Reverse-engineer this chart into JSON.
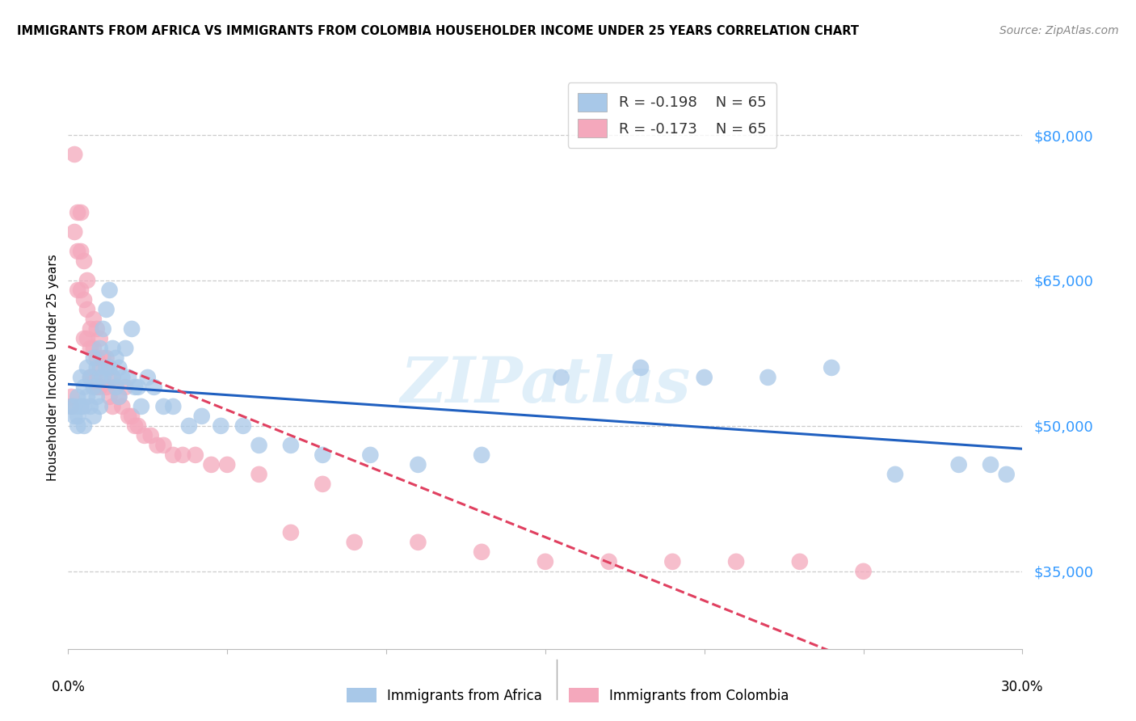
{
  "title": "IMMIGRANTS FROM AFRICA VS IMMIGRANTS FROM COLOMBIA HOUSEHOLDER INCOME UNDER 25 YEARS CORRELATION CHART",
  "source": "Source: ZipAtlas.com",
  "ylabel": "Householder Income Under 25 years",
  "ytick_values": [
    35000,
    50000,
    65000,
    80000
  ],
  "ylim": [
    27000,
    85000
  ],
  "xlim": [
    0.0,
    0.3
  ],
  "legend_africa_r": "R = -0.198",
  "legend_africa_n": "N = 65",
  "legend_colombia_r": "R = -0.173",
  "legend_colombia_n": "N = 65",
  "africa_color": "#A8C8E8",
  "colombia_color": "#F4A8BC",
  "africa_line_color": "#2060C0",
  "colombia_line_color": "#E04060",
  "watermark": "ZIPatlas",
  "africa_scatter_x": [
    0.001,
    0.002,
    0.002,
    0.003,
    0.003,
    0.003,
    0.004,
    0.004,
    0.005,
    0.005,
    0.005,
    0.006,
    0.006,
    0.007,
    0.007,
    0.008,
    0.008,
    0.008,
    0.009,
    0.009,
    0.01,
    0.01,
    0.01,
    0.011,
    0.011,
    0.012,
    0.012,
    0.013,
    0.013,
    0.014,
    0.014,
    0.015,
    0.015,
    0.016,
    0.016,
    0.017,
    0.018,
    0.019,
    0.02,
    0.021,
    0.022,
    0.023,
    0.025,
    0.027,
    0.03,
    0.033,
    0.038,
    0.042,
    0.048,
    0.055,
    0.06,
    0.07,
    0.08,
    0.095,
    0.11,
    0.13,
    0.155,
    0.18,
    0.2,
    0.22,
    0.24,
    0.26,
    0.28,
    0.29,
    0.295
  ],
  "africa_scatter_y": [
    52000,
    52000,
    51000,
    53000,
    51000,
    50000,
    55000,
    52000,
    54000,
    52000,
    50000,
    56000,
    53000,
    55000,
    52000,
    57000,
    54000,
    51000,
    56000,
    53000,
    58000,
    55000,
    52000,
    60000,
    55000,
    62000,
    56000,
    64000,
    56000,
    58000,
    55000,
    57000,
    54000,
    56000,
    53000,
    55000,
    58000,
    55000,
    60000,
    54000,
    54000,
    52000,
    55000,
    54000,
    52000,
    52000,
    50000,
    51000,
    50000,
    50000,
    48000,
    48000,
    47000,
    47000,
    46000,
    47000,
    55000,
    56000,
    55000,
    55000,
    56000,
    45000,
    46000,
    46000,
    45000
  ],
  "colombia_scatter_x": [
    0.001,
    0.001,
    0.002,
    0.002,
    0.003,
    0.003,
    0.003,
    0.004,
    0.004,
    0.004,
    0.005,
    0.005,
    0.005,
    0.006,
    0.006,
    0.006,
    0.007,
    0.007,
    0.007,
    0.008,
    0.008,
    0.008,
    0.009,
    0.009,
    0.009,
    0.01,
    0.01,
    0.01,
    0.011,
    0.011,
    0.012,
    0.012,
    0.013,
    0.013,
    0.014,
    0.014,
    0.015,
    0.016,
    0.017,
    0.018,
    0.019,
    0.02,
    0.021,
    0.022,
    0.024,
    0.026,
    0.028,
    0.03,
    0.033,
    0.036,
    0.04,
    0.045,
    0.05,
    0.06,
    0.07,
    0.08,
    0.09,
    0.11,
    0.13,
    0.15,
    0.17,
    0.19,
    0.21,
    0.23,
    0.25
  ],
  "colombia_scatter_y": [
    53000,
    52000,
    78000,
    70000,
    72000,
    68000,
    64000,
    72000,
    68000,
    64000,
    67000,
    63000,
    59000,
    65000,
    62000,
    59000,
    60000,
    58000,
    55000,
    61000,
    58000,
    55000,
    60000,
    57000,
    54000,
    59000,
    56000,
    54000,
    57000,
    55000,
    57000,
    54000,
    56000,
    53000,
    55000,
    52000,
    54000,
    53000,
    52000,
    54000,
    51000,
    51000,
    50000,
    50000,
    49000,
    49000,
    48000,
    48000,
    47000,
    47000,
    47000,
    46000,
    46000,
    45000,
    39000,
    44000,
    38000,
    38000,
    37000,
    36000,
    36000,
    36000,
    36000,
    36000,
    35000
  ]
}
